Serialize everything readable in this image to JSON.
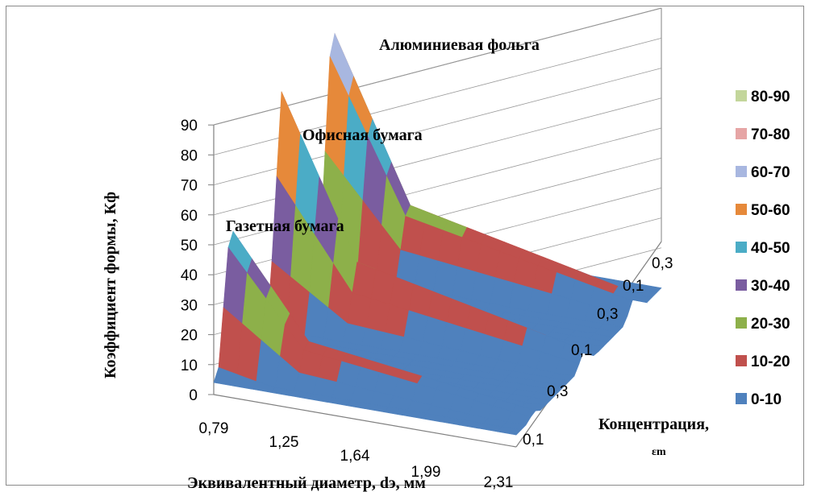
{
  "chart_data": {
    "type": "surface",
    "ylabel": "Коэффициент формы, Кф",
    "xlabel": "Эквивалентный диаметр, dэ, мм",
    "zaxis_label": "Концентрация,",
    "zaxis_sub": "εm",
    "x_ticks": [
      "0,79",
      "1,25",
      "1,64",
      "1,99",
      "2,31"
    ],
    "y_ticks": [
      "0",
      "10",
      "20",
      "30",
      "40",
      "50",
      "60",
      "70",
      "80",
      "90"
    ],
    "y_range": [
      0,
      90
    ],
    "depth_ticks": [
      "0,1",
      "0,3",
      "0,1",
      "0,3",
      "0,1",
      "0,3"
    ],
    "annotations": [
      "Газетная бумага",
      "Офисная бумага",
      "Алюминиевая фольга"
    ],
    "legend": [
      "80-90",
      "70-80",
      "60-70",
      "50-60",
      "40-50",
      "30-40",
      "20-30",
      "10-20",
      "0-10"
    ],
    "legend_colors": [
      "#c3d69b",
      "#e6a5a5",
      "#a8b7e0",
      "#e6893a",
      "#4bacc6",
      "#7a5da0",
      "#8db04a",
      "#c0504d",
      "#4f81bd"
    ],
    "series": [
      {
        "name": "Газетная бумага",
        "peak": 55,
        "x_at_peak": "0,79"
      },
      {
        "name": "Офисная бумага",
        "peak": 80,
        "x_at_peak": "0,79"
      },
      {
        "name": "Алюминиевая фольга",
        "peak": 90,
        "x_at_peak": "0,79"
      }
    ],
    "grid": true,
    "legend_position": "right"
  }
}
